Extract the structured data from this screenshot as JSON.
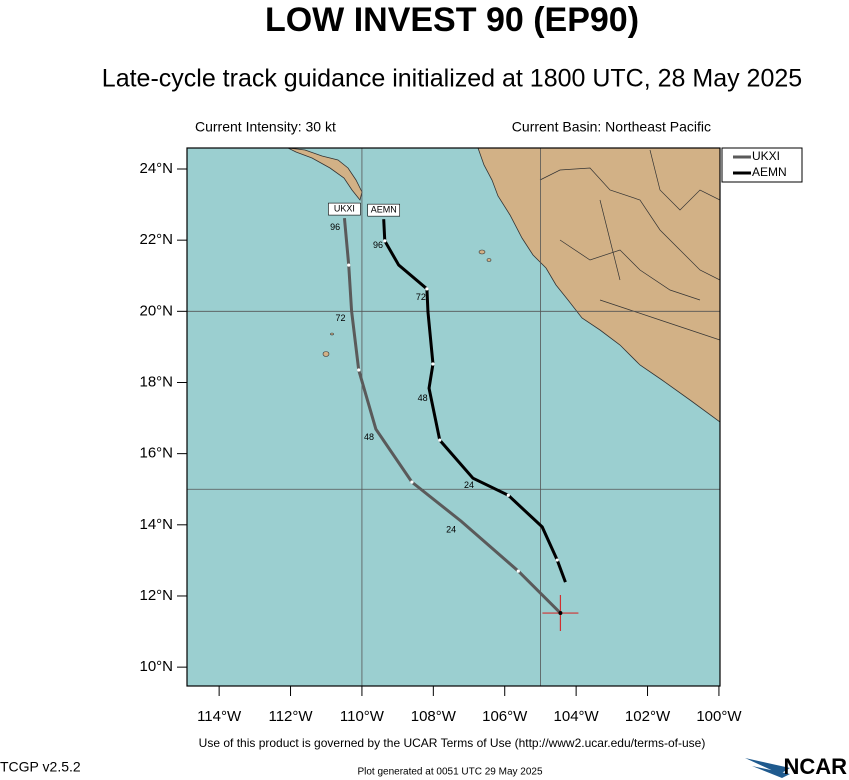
{
  "chart_data": {
    "type": "track-map",
    "title": "LOW INVEST 90 (EP90)",
    "subtitle": "Late-cycle track guidance initialized at 1800 UTC, 28 May 2025",
    "info_left": "Current Intensity: 30 kt",
    "info_right": "Current Basin: Northeast Pacific",
    "xlim": [
      -114.9,
      -99.97
    ],
    "ylim": [
      9.47,
      24.59
    ],
    "xticks": [
      {
        "value": -114,
        "label": "114°W"
      },
      {
        "value": -112,
        "label": "112°W"
      },
      {
        "value": -110,
        "label": "110°W"
      },
      {
        "value": -108,
        "label": "108°W"
      },
      {
        "value": -106,
        "label": "106°W"
      },
      {
        "value": -104,
        "label": "104°W"
      },
      {
        "value": -102,
        "label": "102°W"
      },
      {
        "value": -100,
        "label": "100°W"
      }
    ],
    "yticks": [
      {
        "value": 10,
        "label": "10°N"
      },
      {
        "value": 12,
        "label": "12°N"
      },
      {
        "value": 14,
        "label": "14°N"
      },
      {
        "value": 16,
        "label": "16°N"
      },
      {
        "value": 18,
        "label": "18°N"
      },
      {
        "value": 20,
        "label": "20°N"
      },
      {
        "value": 22,
        "label": "22°N"
      },
      {
        "value": 24,
        "label": "24°N"
      }
    ],
    "grid_lon": [
      -110,
      -105
    ],
    "grid_lat": [
      20,
      15
    ],
    "current_position": {
      "lon": -104.44,
      "lat": 11.52
    },
    "series": [
      {
        "name": "UKXI",
        "color": "#5a5a5a",
        "lon": [
          -104.44,
          -105.62,
          -107.22,
          -108.6,
          -109.61,
          -110.09,
          -110.29,
          -110.37,
          -110.49
        ],
        "lat": [
          11.52,
          12.7,
          14.1,
          15.2,
          16.69,
          18.35,
          20.01,
          21.3,
          22.62
        ],
        "labels": [
          {
            "text": "24",
            "lon": -107.5,
            "lat": 13.85
          },
          {
            "text": "48",
            "lon": -109.8,
            "lat": 16.45
          },
          {
            "text": "72",
            "lon": -110.6,
            "lat": 19.8
          },
          {
            "text": "96",
            "lon": -110.75,
            "lat": 22.35
          }
        ]
      },
      {
        "name": "AEMN",
        "color": "#000000",
        "lon": [
          -104.3,
          -104.53,
          -104.95,
          -105.9,
          -106.89,
          -107.82,
          -108.12,
          -108.01,
          -108.15,
          -108.18,
          -108.97,
          -109.36,
          -109.39
        ],
        "lat": [
          12.39,
          13.01,
          13.94,
          14.83,
          15.31,
          16.38,
          17.84,
          18.52,
          19.98,
          20.63,
          21.3,
          21.98,
          22.59
        ],
        "labels": [
          {
            "text": "24",
            "lon": -107.0,
            "lat": 15.1
          },
          {
            "text": "48",
            "lon": -108.3,
            "lat": 17.55
          },
          {
            "text": "72",
            "lon": -108.35,
            "lat": 20.38
          },
          {
            "text": "96",
            "lon": -109.55,
            "lat": 21.85
          }
        ]
      }
    ],
    "footer": "Use of this product is governed by the UCAR Terms of Use (http://www2.ucar.edu/terms-of-use)",
    "version": "TCGP v2.5.2",
    "generated": "Plot generated at 0051 UTC   29 May 2025",
    "logo": "NCAR"
  }
}
